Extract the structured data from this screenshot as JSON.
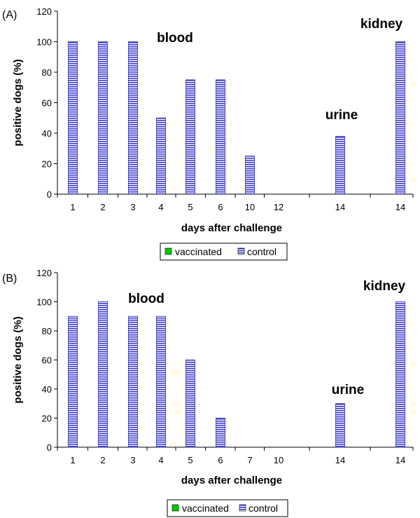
{
  "chart_data": [
    {
      "type": "bar",
      "panel_label": "(A)",
      "categories": [
        "1",
        "2",
        "3",
        "4",
        "5",
        "6",
        "10",
        "12",
        "14",
        "14"
      ],
      "series": [
        {
          "name": "vaccinated",
          "values": [
            0,
            0,
            0,
            0,
            0,
            0,
            0,
            0,
            0,
            0
          ],
          "color": "#00cc00"
        },
        {
          "name": "control",
          "values": [
            100,
            100,
            100,
            50,
            75,
            75,
            25,
            0,
            38,
            100
          ],
          "color": "#3333cc"
        }
      ],
      "xlabel": "days after challenge",
      "ylabel": "positive dogs (%)",
      "ylim": [
        0,
        120
      ],
      "yticks": [
        "0",
        "20",
        "40",
        "60",
        "80",
        "100",
        "120"
      ],
      "annotations": [
        "blood",
        "urine",
        "kidney"
      ],
      "legend": "bottom",
      "grid": false
    },
    {
      "type": "bar",
      "panel_label": "(B)",
      "categories": [
        "1",
        "2",
        "3",
        "4",
        "5",
        "6",
        "7",
        "10",
        "14",
        "14"
      ],
      "series": [
        {
          "name": "vaccinated",
          "values": [
            0,
            0,
            0,
            0,
            0,
            0,
            0,
            0,
            0,
            0
          ],
          "color": "#00cc00"
        },
        {
          "name": "control",
          "values": [
            90,
            100,
            90,
            90,
            60,
            20,
            0,
            0,
            30,
            100
          ],
          "color": "#3333cc"
        }
      ],
      "xlabel": "days after challenge",
      "ylabel": "positive dogs (%)",
      "ylim": [
        0,
        120
      ],
      "yticks": [
        "0",
        "20",
        "40",
        "60",
        "80",
        "100",
        "120"
      ],
      "annotations": [
        "blood",
        "urine",
        "kidney"
      ],
      "legend": "bottom",
      "grid": false
    }
  ]
}
